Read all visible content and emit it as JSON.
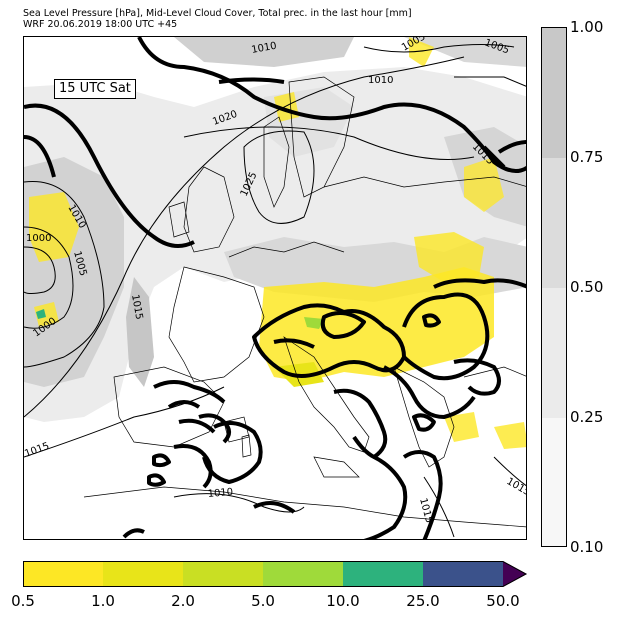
{
  "header": {
    "line1": "Sea Level Pressure [hPa], Mid-Level Cloud Cover, Total prec. in the last hour [mm]",
    "line2": "WRF 20.06.2019 18:00 UTC +45"
  },
  "map": {
    "time_label": "15 UTC Sat",
    "isobar_labels": [
      "1010",
      "1005",
      "1005",
      "1010",
      "1020",
      "1015",
      "1025",
      "1010",
      "1000",
      "1005",
      "1015",
      "1000",
      "1015",
      "1010",
      "1015",
      "1015",
      "1015"
    ]
  },
  "cloud_legend": {
    "ticks": [
      "1.00",
      "0.75",
      "0.50",
      "0.25",
      "0.10"
    ],
    "colors": [
      "#c8c8c8",
      "#dcdcdc",
      "#ebebeb",
      "#f7f7f7"
    ]
  },
  "precip_legend": {
    "ticks": [
      "0.5",
      "1.0",
      "2.0",
      "5.0",
      "10.0",
      "25.0",
      "50.0"
    ],
    "colors": [
      "#fde725",
      "#e8e419",
      "#c9df23",
      "#9fda3a",
      "#2db27d",
      "#3b528b",
      "#440154"
    ]
  }
}
